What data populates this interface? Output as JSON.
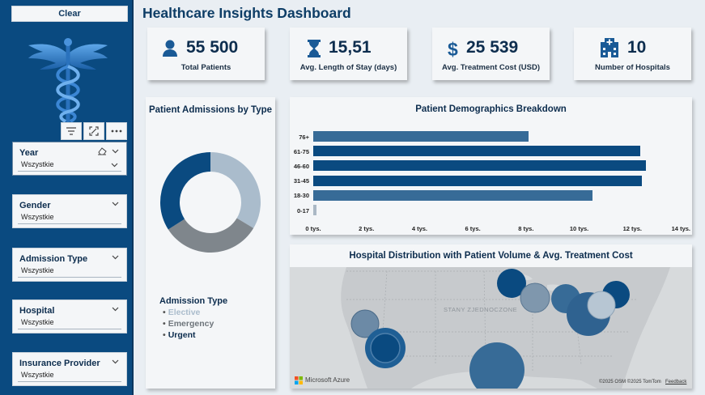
{
  "sidebar": {
    "clear_label": "Clear",
    "slicers": [
      {
        "title": "Year",
        "value": "Wszystkie"
      },
      {
        "title": "Gender",
        "value": "Wszystkie"
      },
      {
        "title": "Admission Type",
        "value": "Wszystkie"
      },
      {
        "title": "Hospital",
        "value": "Wszystkie"
      },
      {
        "title": "Insurance Provider",
        "value": "Wszystkie"
      }
    ]
  },
  "page_title": "Healthcare Insights Dashboard",
  "kpis": [
    {
      "value": "55 500",
      "label": "Total Patients",
      "icon": "person-icon"
    },
    {
      "value": "15,51",
      "label": "Avg. Length of Stay (days)",
      "icon": "hourglass-icon"
    },
    {
      "value": "25 539",
      "label": "Avg. Treatment Cost (USD)",
      "icon": "dollar-icon"
    },
    {
      "value": "10",
      "label": "Number of Hospitals",
      "icon": "hospital-icon"
    }
  ],
  "admissions": {
    "title": "Patient Admissions by Type",
    "legend_title": "Admission Type",
    "legend": [
      {
        "label": "Elective",
        "color": "#aabccc"
      },
      {
        "label": "Emergency",
        "color": "#7f868c"
      },
      {
        "label": "Urgent",
        "color": "#0a4a80"
      }
    ]
  },
  "demographics": {
    "title": "Patient Demographics Breakdown"
  },
  "map": {
    "title": "Hospital Distribution with Patient Volume & Avg. Treatment Cost",
    "country_label": "STANY ZJEDNOCZONE",
    "brand": "Microsoft Azure",
    "attribution": "©2025 OSM ©2025 TomTom",
    "feedback": "Feedback"
  },
  "chart_data": [
    {
      "type": "pie",
      "title": "Patient Admissions by Type",
      "legend_title": "Admission Type",
      "categories": [
        "Elective",
        "Emergency",
        "Urgent"
      ],
      "values": [
        33.6,
        32.3,
        34.1
      ],
      "colors": [
        "#aabccc",
        "#7f868c",
        "#0a4a80"
      ]
    },
    {
      "type": "bar",
      "orientation": "horizontal",
      "title": "Patient Demographics Breakdown",
      "categories": [
        "76+",
        "61-75",
        "46-60",
        "31-45",
        "18-30",
        "0-17"
      ],
      "values": [
        8100,
        12300,
        12500,
        12350,
        10500,
        130
      ],
      "colors": [
        "#376b97",
        "#0a4a80",
        "#0a4a80",
        "#0a4a80",
        "#376b97",
        "#aab8c5"
      ],
      "xlim": [
        0,
        14000
      ],
      "x_ticks": [
        "0 tys.",
        "2 tys.",
        "4 tys.",
        "6 tys.",
        "8 tys.",
        "10 tys.",
        "12 tys.",
        "14 tys."
      ],
      "grid": false
    },
    {
      "type": "scatter",
      "title": "Hospital Distribution with Patient Volume & Avg. Treatment Cost",
      "points": [
        {
          "location": "Pacific Northwest",
          "volume": "medium",
          "color": "#6c8aa6"
        },
        {
          "location": "California",
          "volume": "large",
          "color": "#0a4a80"
        },
        {
          "location": "Texas / Gulf",
          "volume": "very large",
          "color": "#2f6290"
        },
        {
          "location": "Minnesota",
          "volume": "medium",
          "color": "#0a4a80"
        },
        {
          "location": "Illinois",
          "volume": "medium",
          "color": "#7f97ad"
        },
        {
          "location": "Ohio",
          "volume": "medium",
          "color": "#2f6290"
        },
        {
          "location": "New York",
          "volume": "medium",
          "color": "#0a4a80"
        },
        {
          "location": "Mid-Atlantic",
          "volume": "large",
          "color": "#2f6290"
        },
        {
          "location": "Virginia",
          "volume": "medium",
          "color": "#b7c6d3"
        }
      ]
    }
  ]
}
